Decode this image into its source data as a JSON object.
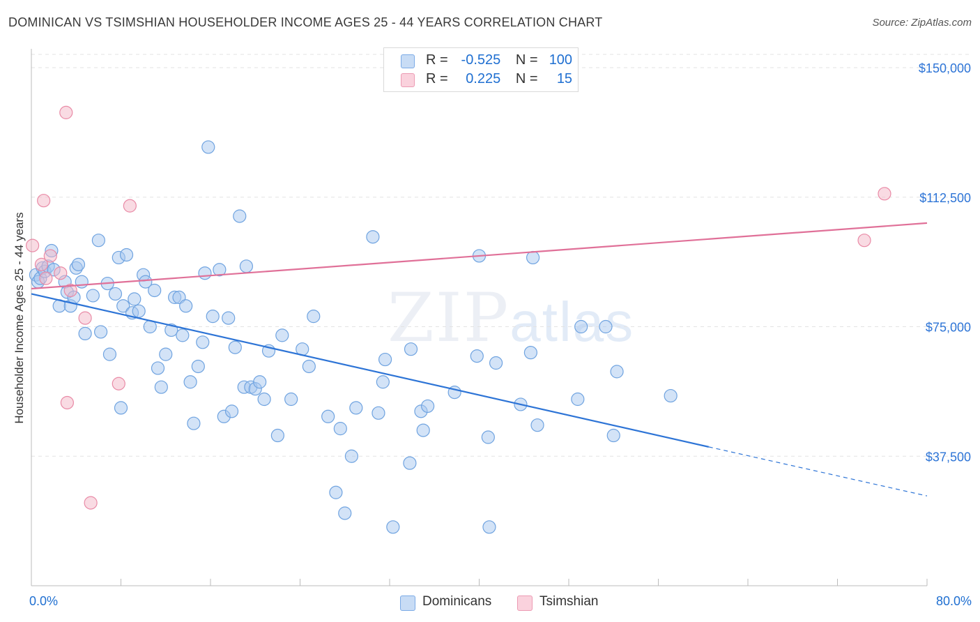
{
  "header": {
    "title": "DOMINICAN VS TSIMSHIAN HOUSEHOLDER INCOME AGES 25 - 44 YEARS CORRELATION CHART",
    "source": "Source: ZipAtlas.com"
  },
  "legend": {
    "rows": [
      {
        "r_label": "R =",
        "r_value": "-0.525",
        "n_label": "N =",
        "n_value": "100",
        "color": "#a8c8f0"
      },
      {
        "r_label": "R =",
        "r_value": "0.225",
        "n_label": "N =",
        "n_value": "15",
        "color": "#f4b8c8"
      }
    ]
  },
  "watermark": {
    "zip": "ZIP",
    "atlas": "atlas"
  },
  "chart_data": {
    "type": "scatter",
    "title": "DOMINICAN VS TSIMSHIAN HOUSEHOLDER INCOME AGES 25 - 44 YEARS CORRELATION CHART",
    "xlabel": "",
    "ylabel": "Householder Income Ages 25 - 44 years",
    "xlim": [
      0,
      80
    ],
    "ylim": [
      0,
      157500
    ],
    "x_tick_labels": [
      "0.0%",
      "80.0%"
    ],
    "y_ticks": [
      37500,
      75000,
      112500,
      150000
    ],
    "y_tick_labels": [
      "$37,500",
      "$75,000",
      "$112,500",
      "$150,000"
    ],
    "grid": true,
    "legend_position": "bottom",
    "series": [
      {
        "name": "Dominicans",
        "color": "#6fa3e0",
        "fill": "#a8c8f0",
        "trend": {
          "x": [
            0,
            60.5
          ],
          "y": [
            84500,
            40200
          ],
          "dashed_to": [
            80,
            26000
          ],
          "color": "#2d74d6"
        },
        "points": [
          [
            0.4,
            90000
          ],
          [
            0.6,
            88000
          ],
          [
            0.8,
            89000
          ],
          [
            1.0,
            92000
          ],
          [
            1.2,
            91000
          ],
          [
            1.5,
            92500
          ],
          [
            1.8,
            97000
          ],
          [
            2.0,
            91500
          ],
          [
            2.5,
            81000
          ],
          [
            3.0,
            88000
          ],
          [
            3.2,
            85000
          ],
          [
            3.5,
            81000
          ],
          [
            3.8,
            83500
          ],
          [
            4.0,
            92000
          ],
          [
            4.2,
            93000
          ],
          [
            4.5,
            88000
          ],
          [
            4.8,
            73000
          ],
          [
            5.5,
            84000
          ],
          [
            6.0,
            100000
          ],
          [
            6.2,
            73500
          ],
          [
            6.8,
            87500
          ],
          [
            7.0,
            67000
          ],
          [
            7.5,
            84500
          ],
          [
            7.8,
            95000
          ],
          [
            8.0,
            51500
          ],
          [
            8.2,
            81000
          ],
          [
            8.5,
            95800
          ],
          [
            9.0,
            79000
          ],
          [
            9.2,
            83000
          ],
          [
            9.6,
            79500
          ],
          [
            10.0,
            90000
          ],
          [
            10.2,
            88000
          ],
          [
            10.6,
            75000
          ],
          [
            11.0,
            85500
          ],
          [
            11.3,
            63000
          ],
          [
            11.6,
            57500
          ],
          [
            12.0,
            67000
          ],
          [
            12.5,
            74000
          ],
          [
            12.8,
            83500
          ],
          [
            13.2,
            83500
          ],
          [
            13.5,
            72500
          ],
          [
            13.8,
            81000
          ],
          [
            14.2,
            59000
          ],
          [
            14.5,
            47000
          ],
          [
            14.9,
            63500
          ],
          [
            15.3,
            70500
          ],
          [
            15.5,
            90500
          ],
          [
            15.8,
            127000
          ],
          [
            16.2,
            78000
          ],
          [
            16.8,
            91500
          ],
          [
            17.2,
            49000
          ],
          [
            17.6,
            77500
          ],
          [
            17.9,
            50500
          ],
          [
            18.2,
            69000
          ],
          [
            18.6,
            107000
          ],
          [
            19.0,
            57500
          ],
          [
            19.2,
            92500
          ],
          [
            19.6,
            57500
          ],
          [
            20.0,
            57000
          ],
          [
            20.4,
            59000
          ],
          [
            20.8,
            54000
          ],
          [
            21.2,
            68000
          ],
          [
            22.0,
            43500
          ],
          [
            22.4,
            72500
          ],
          [
            23.2,
            54000
          ],
          [
            24.2,
            68500
          ],
          [
            24.8,
            63500
          ],
          [
            25.2,
            78000
          ],
          [
            26.5,
            49000
          ],
          [
            27.2,
            27000
          ],
          [
            27.6,
            45500
          ],
          [
            28.0,
            21000
          ],
          [
            28.6,
            37500
          ],
          [
            29.0,
            51500
          ],
          [
            30.5,
            101000
          ],
          [
            31.0,
            50000
          ],
          [
            31.4,
            59000
          ],
          [
            31.6,
            65500
          ],
          [
            32.3,
            17000
          ],
          [
            33.8,
            35500
          ],
          [
            33.9,
            68500
          ],
          [
            34.8,
            50500
          ],
          [
            35.0,
            45000
          ],
          [
            35.4,
            52000
          ],
          [
            37.8,
            56000
          ],
          [
            39.8,
            66500
          ],
          [
            40.0,
            95500
          ],
          [
            40.8,
            43000
          ],
          [
            40.9,
            17000
          ],
          [
            41.5,
            64500
          ],
          [
            43.7,
            52500
          ],
          [
            44.6,
            67500
          ],
          [
            44.8,
            95000
          ],
          [
            45.2,
            46500
          ],
          [
            48.8,
            54000
          ],
          [
            49.1,
            75000
          ],
          [
            51.3,
            75000
          ],
          [
            52.0,
            43500
          ],
          [
            52.3,
            62000
          ],
          [
            57.1,
            55000
          ]
        ]
      },
      {
        "name": "Tsimshian",
        "color": "#e98aa6",
        "fill": "#f4b8c8",
        "trend": {
          "x": [
            0,
            80
          ],
          "y": [
            86000,
            105000
          ],
          "color": "#e07098"
        },
        "points": [
          [
            0.1,
            98500
          ],
          [
            0.9,
            93000
          ],
          [
            1.1,
            111500
          ],
          [
            1.3,
            89000
          ],
          [
            1.7,
            95500
          ],
          [
            2.6,
            90500
          ],
          [
            3.1,
            137000
          ],
          [
            3.2,
            53000
          ],
          [
            3.5,
            85500
          ],
          [
            4.8,
            77500
          ],
          [
            5.3,
            24000
          ],
          [
            7.8,
            58500
          ],
          [
            8.8,
            110000
          ],
          [
            76.2,
            113500
          ],
          [
            74.4,
            100000
          ]
        ]
      }
    ]
  }
}
